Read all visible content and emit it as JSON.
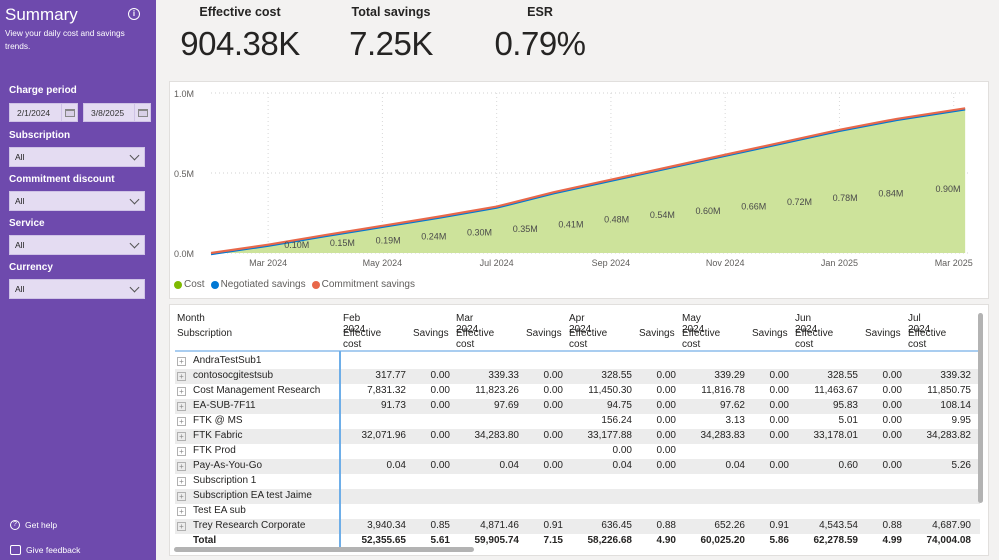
{
  "sidebar": {
    "title": "Summary",
    "info_icon": "info-icon",
    "description": "View your daily cost and savings trends.",
    "filters": {
      "charge_period": {
        "label": "Charge period",
        "start": "2/1/2024",
        "end": "3/8/2025"
      },
      "subscription": {
        "label": "Subscription",
        "value": "All"
      },
      "commitment_discount": {
        "label": "Commitment discount",
        "value": "All"
      },
      "service": {
        "label": "Service",
        "value": "All"
      },
      "currency": {
        "label": "Currency",
        "value": "All"
      }
    },
    "footer": {
      "help": "Get help",
      "feedback": "Give feedback"
    }
  },
  "kpis": [
    {
      "label": "Effective cost",
      "value": "904.38K"
    },
    {
      "label": "Total savings",
      "value": "7.25K"
    },
    {
      "label": "ESR",
      "value": "0.79%"
    }
  ],
  "chart_data": {
    "type": "area",
    "title": "",
    "xlabel": "",
    "ylabel": "",
    "ylim": [
      0,
      1000000
    ],
    "y_ticks": [
      "0.0M",
      "0.5M",
      "1.0M"
    ],
    "y_tick_values": [
      0,
      500000,
      1000000
    ],
    "x_ticks": [
      "Mar 2024",
      "May 2024",
      "Jul 2024",
      "Sep 2024",
      "Nov 2024",
      "Jan 2025",
      "Mar 2025"
    ],
    "x_tick_positions": [
      1,
      3,
      5,
      7,
      9,
      11,
      13
    ],
    "x_range": [
      0,
      13.25
    ],
    "grid": true,
    "legend_position": "bottom-left",
    "series": [
      {
        "name": "Cost",
        "color": "#7fba00",
        "fill": "#cde39b"
      },
      {
        "name": "Negotiated savings",
        "color": "#0078d4"
      },
      {
        "name": "Commitment savings",
        "color": "#e8684a"
      }
    ],
    "cumulative_points_x": [
      0,
      1,
      2,
      3,
      4,
      5,
      6,
      7,
      8,
      9,
      10,
      11,
      12,
      13.2
    ],
    "cumulative_points_y": [
      0,
      52000,
      112000,
      170000,
      228000,
      290000,
      380000,
      458000,
      536000,
      614000,
      692000,
      770000,
      838000,
      904380
    ],
    "data_labels": [
      {
        "text": "0.10M",
        "x": 1.5,
        "y": 100000
      },
      {
        "text": "0.15M",
        "x": 2.3,
        "y": 150000
      },
      {
        "text": "0.19M",
        "x": 3.1,
        "y": 190000
      },
      {
        "text": "0.24M",
        "x": 3.9,
        "y": 240000
      },
      {
        "text": "0.30M",
        "x": 4.7,
        "y": 300000
      },
      {
        "text": "0.35M",
        "x": 5.5,
        "y": 350000
      },
      {
        "text": "0.41M",
        "x": 6.3,
        "y": 410000
      },
      {
        "text": "0.48M",
        "x": 7.1,
        "y": 480000
      },
      {
        "text": "0.54M",
        "x": 7.9,
        "y": 540000
      },
      {
        "text": "0.60M",
        "x": 8.7,
        "y": 600000
      },
      {
        "text": "0.66M",
        "x": 9.5,
        "y": 660000
      },
      {
        "text": "0.72M",
        "x": 10.3,
        "y": 720000
      },
      {
        "text": "0.78M",
        "x": 11.1,
        "y": 780000
      },
      {
        "text": "0.84M",
        "x": 11.9,
        "y": 840000
      },
      {
        "text": "0.90M",
        "x": 12.9,
        "y": 900000
      }
    ]
  },
  "table": {
    "row_header_1": "Month",
    "row_header_2": "Subscription",
    "months": [
      "Feb 2024",
      "Mar 2024",
      "Apr 2024",
      "May 2024",
      "Jun 2024",
      "Jul 2024"
    ],
    "col_labels": [
      "Effective cost",
      "Savings"
    ],
    "rows": [
      {
        "name": "AndraTestSub1",
        "values": [
          "",
          "",
          "",
          "",
          "",
          "",
          "",
          "",
          "",
          "",
          ""
        ]
      },
      {
        "name": "contosocgitestsub",
        "values": [
          "317.77",
          "0.00",
          "339.33",
          "0.00",
          "328.55",
          "0.00",
          "339.29",
          "0.00",
          "328.55",
          "0.00",
          "339.32"
        ]
      },
      {
        "name": "Cost Management Research",
        "values": [
          "7,831.32",
          "0.00",
          "11,823.26",
          "0.00",
          "11,450.30",
          "0.00",
          "11,816.78",
          "0.00",
          "11,463.67",
          "0.00",
          "11,850.75"
        ]
      },
      {
        "name": "EA-SUB-7F11",
        "values": [
          "91.73",
          "0.00",
          "97.69",
          "0.00",
          "94.75",
          "0.00",
          "97.62",
          "0.00",
          "95.83",
          "0.00",
          "108.14"
        ]
      },
      {
        "name": "FTK @ MS",
        "values": [
          "",
          "",
          "",
          "",
          "156.24",
          "0.00",
          "3.13",
          "0.00",
          "5.01",
          "0.00",
          "9.95"
        ]
      },
      {
        "name": "FTK Fabric",
        "values": [
          "32,071.96",
          "0.00",
          "34,283.80",
          "0.00",
          "33,177.88",
          "0.00",
          "34,283.83",
          "0.00",
          "33,178.01",
          "0.00",
          "34,283.82"
        ]
      },
      {
        "name": "FTK Prod",
        "values": [
          "",
          "",
          "",
          "",
          "0.00",
          "0.00",
          "",
          "",
          "",
          "",
          ""
        ]
      },
      {
        "name": "Pay-As-You-Go",
        "values": [
          "0.04",
          "0.00",
          "0.04",
          "0.00",
          "0.04",
          "0.00",
          "0.04",
          "0.00",
          "0.60",
          "0.00",
          "5.26"
        ]
      },
      {
        "name": "Subscription 1",
        "values": [
          "",
          "",
          "",
          "",
          "",
          "",
          "",
          "",
          "",
          "",
          ""
        ]
      },
      {
        "name": "Subscription EA test Jaime",
        "values": [
          "",
          "",
          "",
          "",
          "",
          "",
          "",
          "",
          "",
          "",
          ""
        ]
      },
      {
        "name": "Test EA sub",
        "values": [
          "",
          "",
          "",
          "",
          "",
          "",
          "",
          "",
          "",
          "",
          ""
        ]
      },
      {
        "name": "Trey Research Corporate",
        "values": [
          "3,940.34",
          "0.85",
          "4,871.46",
          "0.91",
          "636.45",
          "0.88",
          "652.26",
          "0.91",
          "4,543.54",
          "0.88",
          "4,687.90"
        ]
      }
    ],
    "total": {
      "name": "Total",
      "values": [
        "52,355.65",
        "5.61",
        "59,905.74",
        "7.15",
        "58,226.68",
        "4.90",
        "60,025.20",
        "5.86",
        "62,278.59",
        "4.99",
        "74,004.08"
      ]
    }
  }
}
